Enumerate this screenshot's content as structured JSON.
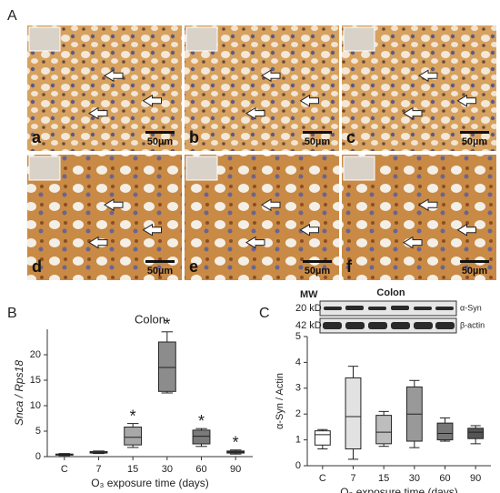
{
  "figure": {
    "panel_a": {
      "label": "A",
      "subpanels": [
        {
          "letter": "a",
          "scale": "50µm"
        },
        {
          "letter": "b",
          "scale": "50µm"
        },
        {
          "letter": "c",
          "scale": "50µm"
        },
        {
          "letter": "d",
          "scale": "50µm"
        },
        {
          "letter": "e",
          "scale": "50µm"
        },
        {
          "letter": "f",
          "scale": "50µm"
        }
      ]
    },
    "panel_b": {
      "label": "B"
    },
    "panel_c": {
      "label": "C"
    },
    "blot": {
      "mw": "MW",
      "title": "Colon",
      "rows": [
        {
          "mw": "20 kD",
          "protein": "α-Syn"
        },
        {
          "mw": "42 kD",
          "protein": "β-actin"
        }
      ]
    }
  },
  "chart_data": [
    {
      "type": "boxplot",
      "title": "Colon",
      "y_label": "Snca / Rps18",
      "x_label": "O₃ exposure time (days)",
      "categories": [
        "C",
        "7",
        "15",
        "30",
        "60",
        "90"
      ],
      "min": [
        0.2,
        0.6,
        1.8,
        12.5,
        2,
        0.5
      ],
      "q1": [
        0.3,
        0.7,
        2.3,
        12.8,
        2.5,
        0.7
      ],
      "median": [
        0.4,
        0.85,
        3.8,
        17.5,
        4,
        0.9
      ],
      "q3": [
        0.5,
        1.0,
        5.8,
        22.5,
        5.2,
        1.1
      ],
      "max": [
        0.6,
        1.1,
        6.5,
        24.5,
        5.5,
        1.3
      ],
      "colors": [
        "#ffffff",
        "#d0d0d0",
        "#a8a8a8",
        "#8c8c8c",
        "#7a7a7a",
        "#5a5a5a"
      ],
      "annotations": [
        {
          "text": "*",
          "x": "15"
        },
        {
          "text": "*",
          "x": "30"
        },
        {
          "text": "*",
          "x": "60"
        },
        {
          "text": "*",
          "x": "90"
        }
      ],
      "ylim": [
        0,
        25
      ],
      "yticks": [
        0,
        5,
        10,
        15,
        20
      ]
    },
    {
      "type": "boxplot",
      "y_label": "α-Syn / Actin",
      "x_label": "O₃ exposure time (days)",
      "categories": [
        "C",
        "7",
        "15",
        "30",
        "60",
        "90"
      ],
      "min": [
        0.65,
        0.25,
        0.75,
        0.7,
        0.95,
        0.85
      ],
      "q1": [
        0.8,
        0.65,
        0.85,
        0.95,
        1.0,
        1.05
      ],
      "median": [
        1.2,
        1.9,
        1.3,
        2.0,
        1.25,
        1.3
      ],
      "q3": [
        1.35,
        3.4,
        1.95,
        3.05,
        1.65,
        1.45
      ],
      "max": [
        1.4,
        3.85,
        2.1,
        3.3,
        1.85,
        1.55
      ],
      "colors": [
        "#ffffff",
        "#e2e2e2",
        "#bdbdbd",
        "#999999",
        "#777777",
        "#555555"
      ],
      "ylim": [
        0,
        5
      ],
      "yticks": [
        0,
        1,
        2,
        3,
        4,
        5
      ]
    }
  ]
}
